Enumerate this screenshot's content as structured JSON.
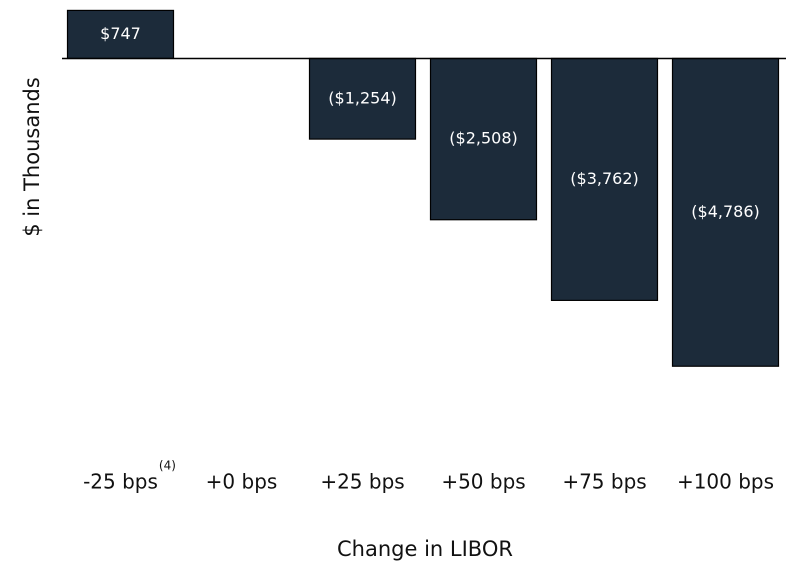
{
  "chart_data": {
    "type": "bar",
    "x_label": "Change in LIBOR",
    "y_label": "$ in Thousands",
    "categories": [
      "-25 bps",
      "+0 bps",
      "+25 bps",
      "+50 bps",
      "+75 bps",
      "+100 bps"
    ],
    "superscripts": [
      "(4)",
      null,
      null,
      null,
      null,
      null
    ],
    "values": [
      747,
      0,
      -1254,
      -2508,
      -3762,
      -4786
    ],
    "value_labels": [
      "$747",
      null,
      "($1,254)",
      "($2,508)",
      "($3,762)",
      "($4,786)"
    ],
    "color": "#1c2b3a",
    "ylim": [
      -5000,
      800
    ]
  }
}
